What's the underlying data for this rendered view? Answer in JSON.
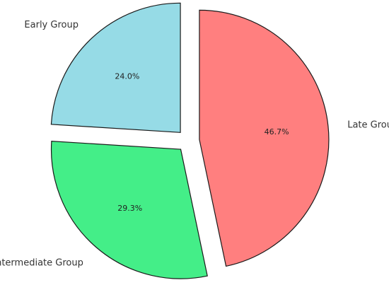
{
  "chart_data": {
    "type": "pie",
    "title": "",
    "slices": [
      {
        "label": "Late Group",
        "value": 46.7,
        "pct_label": "46.7%",
        "color": "#ff7f7f",
        "exploded": true
      },
      {
        "label": "Intermediate Group",
        "value": 29.3,
        "pct_label": "29.3%",
        "color": "#44ee88",
        "exploded": true
      },
      {
        "label": "Early Group",
        "value": 24.0,
        "pct_label": "24.0%",
        "color": "#96dbe6",
        "exploded": true
      }
    ],
    "start_angle_deg": 90,
    "direction": "clockwise",
    "legend": "none"
  }
}
